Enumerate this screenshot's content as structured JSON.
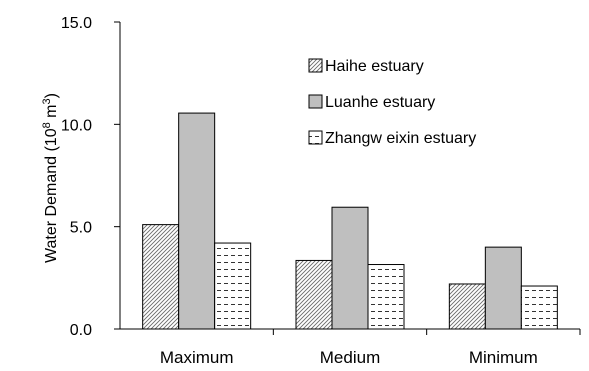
{
  "chart_data": {
    "type": "bar",
    "categories": [
      "Maximum",
      "Medium",
      "Minimum"
    ],
    "series": [
      {
        "name": "Haihe estuary",
        "values": [
          5.1,
          3.35,
          2.2
        ],
        "pattern": "diagonal-hatch"
      },
      {
        "name": "Luanhe estuary",
        "values": [
          10.55,
          5.95,
          4.0
        ],
        "pattern": "solid-gray"
      },
      {
        "name": "Zhangw eixin estuary",
        "values": [
          4.2,
          3.15,
          2.1
        ],
        "pattern": "horizontal-dash"
      }
    ],
    "ylabel": {
      "main": "Water Demand (10",
      "sup1": "8",
      "mid": " m",
      "sup2": "3",
      "end": ")"
    },
    "ylim": [
      0,
      15
    ],
    "yticks": [
      "0.0",
      "5.0",
      "10.0",
      "15.0"
    ],
    "ytick_values": [
      0,
      5,
      10,
      15
    ],
    "grid": false,
    "legend_position": "top-right",
    "colors": {
      "solid_gray": "#bfbfbf",
      "outline": "#000000",
      "background": "#ffffff"
    }
  }
}
